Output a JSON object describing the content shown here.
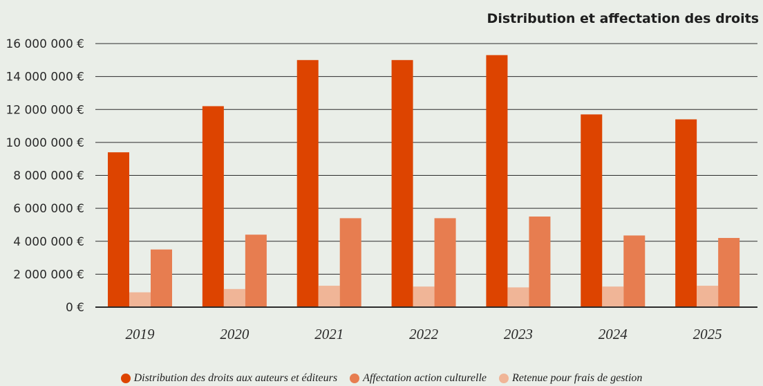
{
  "chart_data": {
    "type": "bar",
    "title": "Distribution et affectation des droits",
    "categories": [
      "2019",
      "2020",
      "2021",
      "2022",
      "2023",
      "2024",
      "2025"
    ],
    "series": [
      {
        "name": "Distribution des droits aux auteurs et éditeurs",
        "color": "#dd4400",
        "values": [
          9400000,
          12200000,
          15000000,
          15000000,
          15300000,
          11700000,
          11400000
        ]
      },
      {
        "name": "Retenue pour frais de gestion",
        "color": "#f0b597",
        "values": [
          900000,
          1100000,
          1300000,
          1250000,
          1200000,
          1250000,
          1300000
        ]
      },
      {
        "name": "Affectation action culturelle",
        "color": "#e77d50",
        "values": [
          3500000,
          4400000,
          5400000,
          5400000,
          5500000,
          4350000,
          4200000
        ]
      }
    ],
    "ylim": [
      0,
      16000000
    ],
    "yticks": [
      0,
      2000000,
      4000000,
      6000000,
      8000000,
      10000000,
      12000000,
      14000000,
      16000000
    ],
    "ytick_labels": [
      "0 €",
      "2 000 000 €",
      "4 000 000 €",
      "6 000 000 €",
      "8 000 000 €",
      "10 000 000 €",
      "12 000 000 €",
      "14 000 000 €",
      "16 000 000 €"
    ],
    "grid": true,
    "legend_position": "bottom",
    "legend": [
      {
        "label": "Distribution des droits aux auteurs et éditeurs",
        "color": "#dd4400"
      },
      {
        "label": "Affectation action culturelle",
        "color": "#e77d50"
      },
      {
        "label": "Retenue pour frais de gestion",
        "color": "#f0b597"
      }
    ]
  }
}
